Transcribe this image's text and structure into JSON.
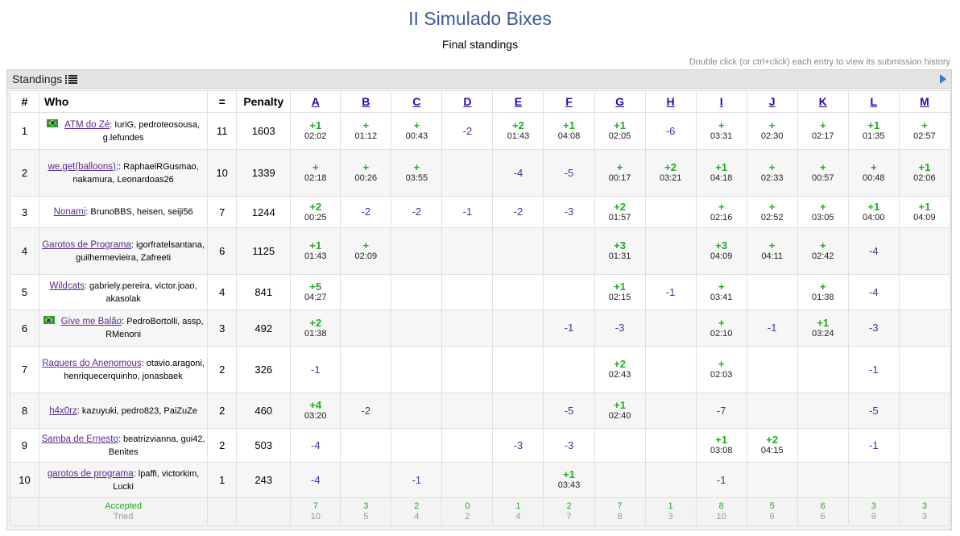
{
  "title": "II Simulado Bixes",
  "subtitle": "Final standings",
  "hint": "Double click (or ctrl+click) each entry to view its submission history",
  "panel": {
    "title": "Standings",
    "title_icon": "list-icon",
    "expand_icon": "triangle-right-icon"
  },
  "header": {
    "rank": "#",
    "who": "Who",
    "solved": "=",
    "penalty": "Penalty"
  },
  "problems": [
    "A",
    "B",
    "C",
    "D",
    "E",
    "F",
    "G",
    "H",
    "I",
    "J",
    "K",
    "L",
    "M"
  ],
  "teams": [
    {
      "rank": "1",
      "flag": true,
      "name": "ATM do Zé",
      "members": "IuriG, pedroteosousa, g.lefundes",
      "solved": "11",
      "penalty": "1603",
      "results": [
        [
          "+1",
          "02:02"
        ],
        [
          "+",
          "01:12"
        ],
        [
          "+",
          "00:43"
        ],
        [
          "-2",
          ""
        ],
        [
          "+2",
          "01:43"
        ],
        [
          "+1",
          "04:08"
        ],
        [
          "+1",
          "02:05"
        ],
        [
          "-6",
          ""
        ],
        [
          "+",
          "03:31"
        ],
        [
          "+",
          "02:30"
        ],
        [
          "+",
          "02:17"
        ],
        [
          "+1",
          "01:35"
        ],
        [
          "+",
          "02:57"
        ]
      ]
    },
    {
      "rank": "2",
      "flag": false,
      "name": "we.get(balloons);",
      "members": "RaphaelRGusmao, nakamura, Leonardoas26",
      "solved": "10",
      "penalty": "1339",
      "results": [
        [
          "+",
          "02:18"
        ],
        [
          "+",
          "00:26"
        ],
        [
          "+",
          "03:55"
        ],
        [
          "",
          ""
        ],
        [
          "-4",
          ""
        ],
        [
          "-5",
          ""
        ],
        [
          "+",
          "00:17"
        ],
        [
          "+2",
          "03:21"
        ],
        [
          "+1",
          "04:18"
        ],
        [
          "+",
          "02:33"
        ],
        [
          "+",
          "00:57"
        ],
        [
          "+",
          "00:48"
        ],
        [
          "+1",
          "02:06"
        ]
      ]
    },
    {
      "rank": "3",
      "flag": false,
      "name": "Nonami",
      "members": "BrunoBBS, heisen, seiji56",
      "solved": "7",
      "penalty": "1244",
      "results": [
        [
          "+2",
          "00:25"
        ],
        [
          "-2",
          ""
        ],
        [
          "-2",
          ""
        ],
        [
          "-1",
          ""
        ],
        [
          "-2",
          ""
        ],
        [
          "-3",
          ""
        ],
        [
          "+2",
          "01:57"
        ],
        [
          "",
          ""
        ],
        [
          "+",
          "02:16"
        ],
        [
          "+",
          "02:52"
        ],
        [
          "+",
          "03:05"
        ],
        [
          "+1",
          "04:00"
        ],
        [
          "+1",
          "04:09"
        ]
      ]
    },
    {
      "rank": "4",
      "flag": false,
      "name": "Garotos de Programa",
      "members": "igorfratelsantana, guilhermevieira, Zafreeti",
      "solved": "6",
      "penalty": "1125",
      "results": [
        [
          "+1",
          "01:43"
        ],
        [
          "+",
          "02:09"
        ],
        [
          "",
          ""
        ],
        [
          "",
          ""
        ],
        [
          "",
          ""
        ],
        [
          "",
          ""
        ],
        [
          "+3",
          "01:31"
        ],
        [
          "",
          ""
        ],
        [
          "+3",
          "04:09"
        ],
        [
          "+",
          "04:11"
        ],
        [
          "+",
          "02:42"
        ],
        [
          "-4",
          ""
        ],
        [
          "",
          ""
        ]
      ]
    },
    {
      "rank": "5",
      "flag": false,
      "name": "Wildcats",
      "members": "gabriely.pereira, victor.joao, akasolak",
      "solved": "4",
      "penalty": "841",
      "results": [
        [
          "+5",
          "04:27"
        ],
        [
          "",
          ""
        ],
        [
          "",
          ""
        ],
        [
          "",
          ""
        ],
        [
          "",
          ""
        ],
        [
          "",
          ""
        ],
        [
          "+1",
          "02:15"
        ],
        [
          "-1",
          ""
        ],
        [
          "+",
          "03:41"
        ],
        [
          "",
          ""
        ],
        [
          "+",
          "01:38"
        ],
        [
          "-4",
          ""
        ],
        [
          "",
          ""
        ]
      ]
    },
    {
      "rank": "6",
      "flag": true,
      "name": "Give me Balão",
      "members": "PedroBortolli, assp, RMenoni",
      "solved": "3",
      "penalty": "492",
      "results": [
        [
          "+2",
          "01:38"
        ],
        [
          "",
          ""
        ],
        [
          "",
          ""
        ],
        [
          "",
          ""
        ],
        [
          "",
          ""
        ],
        [
          "-1",
          ""
        ],
        [
          "-3",
          ""
        ],
        [
          "",
          ""
        ],
        [
          "+",
          "02:10"
        ],
        [
          "-1",
          ""
        ],
        [
          "+1",
          "03:24"
        ],
        [
          "-3",
          ""
        ],
        [
          "",
          ""
        ]
      ]
    },
    {
      "rank": "7",
      "flag": false,
      "name": "Raquers do Anenomous",
      "members": "otavio.aragoni, henriquecerquinho, jonasbaek",
      "solved": "2",
      "penalty": "326",
      "results": [
        [
          "-1",
          ""
        ],
        [
          "",
          ""
        ],
        [
          "",
          ""
        ],
        [
          "",
          ""
        ],
        [
          "",
          ""
        ],
        [
          "",
          ""
        ],
        [
          "+2",
          "02:43"
        ],
        [
          "",
          ""
        ],
        [
          "+",
          "02:03"
        ],
        [
          "",
          ""
        ],
        [
          "",
          ""
        ],
        [
          "-1",
          ""
        ],
        [
          "",
          ""
        ]
      ]
    },
    {
      "rank": "8",
      "flag": false,
      "name": "h4x0rz",
      "members": "kazuyuki, pedro823, PaiZuZe",
      "solved": "2",
      "penalty": "460",
      "results": [
        [
          "+4",
          "03:20"
        ],
        [
          "-2",
          ""
        ],
        [
          "",
          ""
        ],
        [
          "",
          ""
        ],
        [
          "",
          ""
        ],
        [
          "-5",
          ""
        ],
        [
          "+1",
          "02:40"
        ],
        [
          "",
          ""
        ],
        [
          "-7",
          ""
        ],
        [
          "",
          ""
        ],
        [
          "",
          ""
        ],
        [
          "-5",
          ""
        ],
        [
          "",
          ""
        ]
      ]
    },
    {
      "rank": "9",
      "flag": false,
      "name": "Samba de Ernesto",
      "members": "beatrizvianna, gui42, Benites",
      "solved": "2",
      "penalty": "503",
      "results": [
        [
          "-4",
          ""
        ],
        [
          "",
          ""
        ],
        [
          "",
          ""
        ],
        [
          "",
          ""
        ],
        [
          "-3",
          ""
        ],
        [
          "-3",
          ""
        ],
        [
          "",
          ""
        ],
        [
          "",
          ""
        ],
        [
          "+1",
          "03:08"
        ],
        [
          "+2",
          "04:15"
        ],
        [
          "",
          ""
        ],
        [
          "-1",
          ""
        ],
        [
          "",
          ""
        ]
      ]
    },
    {
      "rank": "10",
      "flag": false,
      "name": "garotos de programa",
      "members": "lpaffi, victorkim, Lucki",
      "solved": "1",
      "penalty": "243",
      "results": [
        [
          "-4",
          ""
        ],
        [
          "",
          ""
        ],
        [
          "-1",
          ""
        ],
        [
          "",
          ""
        ],
        [
          "",
          ""
        ],
        [
          "+1",
          "03:43"
        ],
        [
          "",
          ""
        ],
        [
          "",
          ""
        ],
        [
          "-1",
          ""
        ],
        [
          "",
          ""
        ],
        [
          "",
          ""
        ],
        [
          "",
          ""
        ],
        [
          "",
          ""
        ]
      ]
    }
  ],
  "footer": {
    "accepted_label": "Accepted",
    "tried_label": "Tried",
    "accepted": [
      "7",
      "3",
      "2",
      "0",
      "1",
      "2",
      "7",
      "1",
      "8",
      "5",
      "6",
      "3",
      "3"
    ],
    "tried": [
      "10",
      "5",
      "4",
      "2",
      "4",
      "7",
      "8",
      "3",
      "10",
      "6",
      "6",
      "9",
      "3"
    ]
  },
  "colors": {
    "title": "#3b5998",
    "accepted": "#22aa22",
    "failed": "#3a3a9a",
    "team_link": "#5b2b8a"
  }
}
